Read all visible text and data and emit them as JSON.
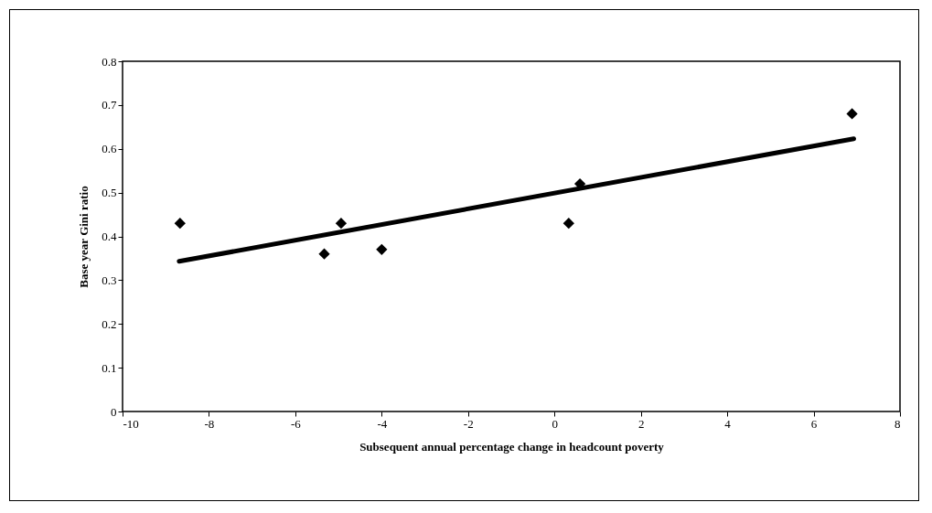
{
  "chart_data": {
    "type": "scatter",
    "xlabel": "Subsequent annual percentage change in headcount poverty",
    "ylabel": "Base year Gini ratio",
    "xlim": [
      -10,
      8
    ],
    "xticks": [
      -10,
      -8,
      -6,
      -4,
      -2,
      0,
      2,
      4,
      6,
      8
    ],
    "ylim": [
      0,
      0.8
    ],
    "yticks": [
      0,
      0.1,
      0.2,
      0.3,
      0.4,
      0.5,
      0.6,
      0.7,
      0.8
    ],
    "grid": false,
    "marker": "diamond",
    "series": [
      {
        "color": "#000000",
        "x": [
          -8.67,
          -5.33,
          -4.94,
          -4.0,
          0.33,
          0.59,
          6.89
        ],
        "values": [
          0.43,
          0.36,
          0.43,
          0.37,
          0.43,
          0.52,
          0.68
        ]
      },
      {
        "type": "line",
        "color": "#000000",
        "x": [
          -8.69,
          6.93
        ],
        "values": [
          0.343,
          0.623
        ],
        "line_style": "solid",
        "marker": "none"
      }
    ]
  }
}
